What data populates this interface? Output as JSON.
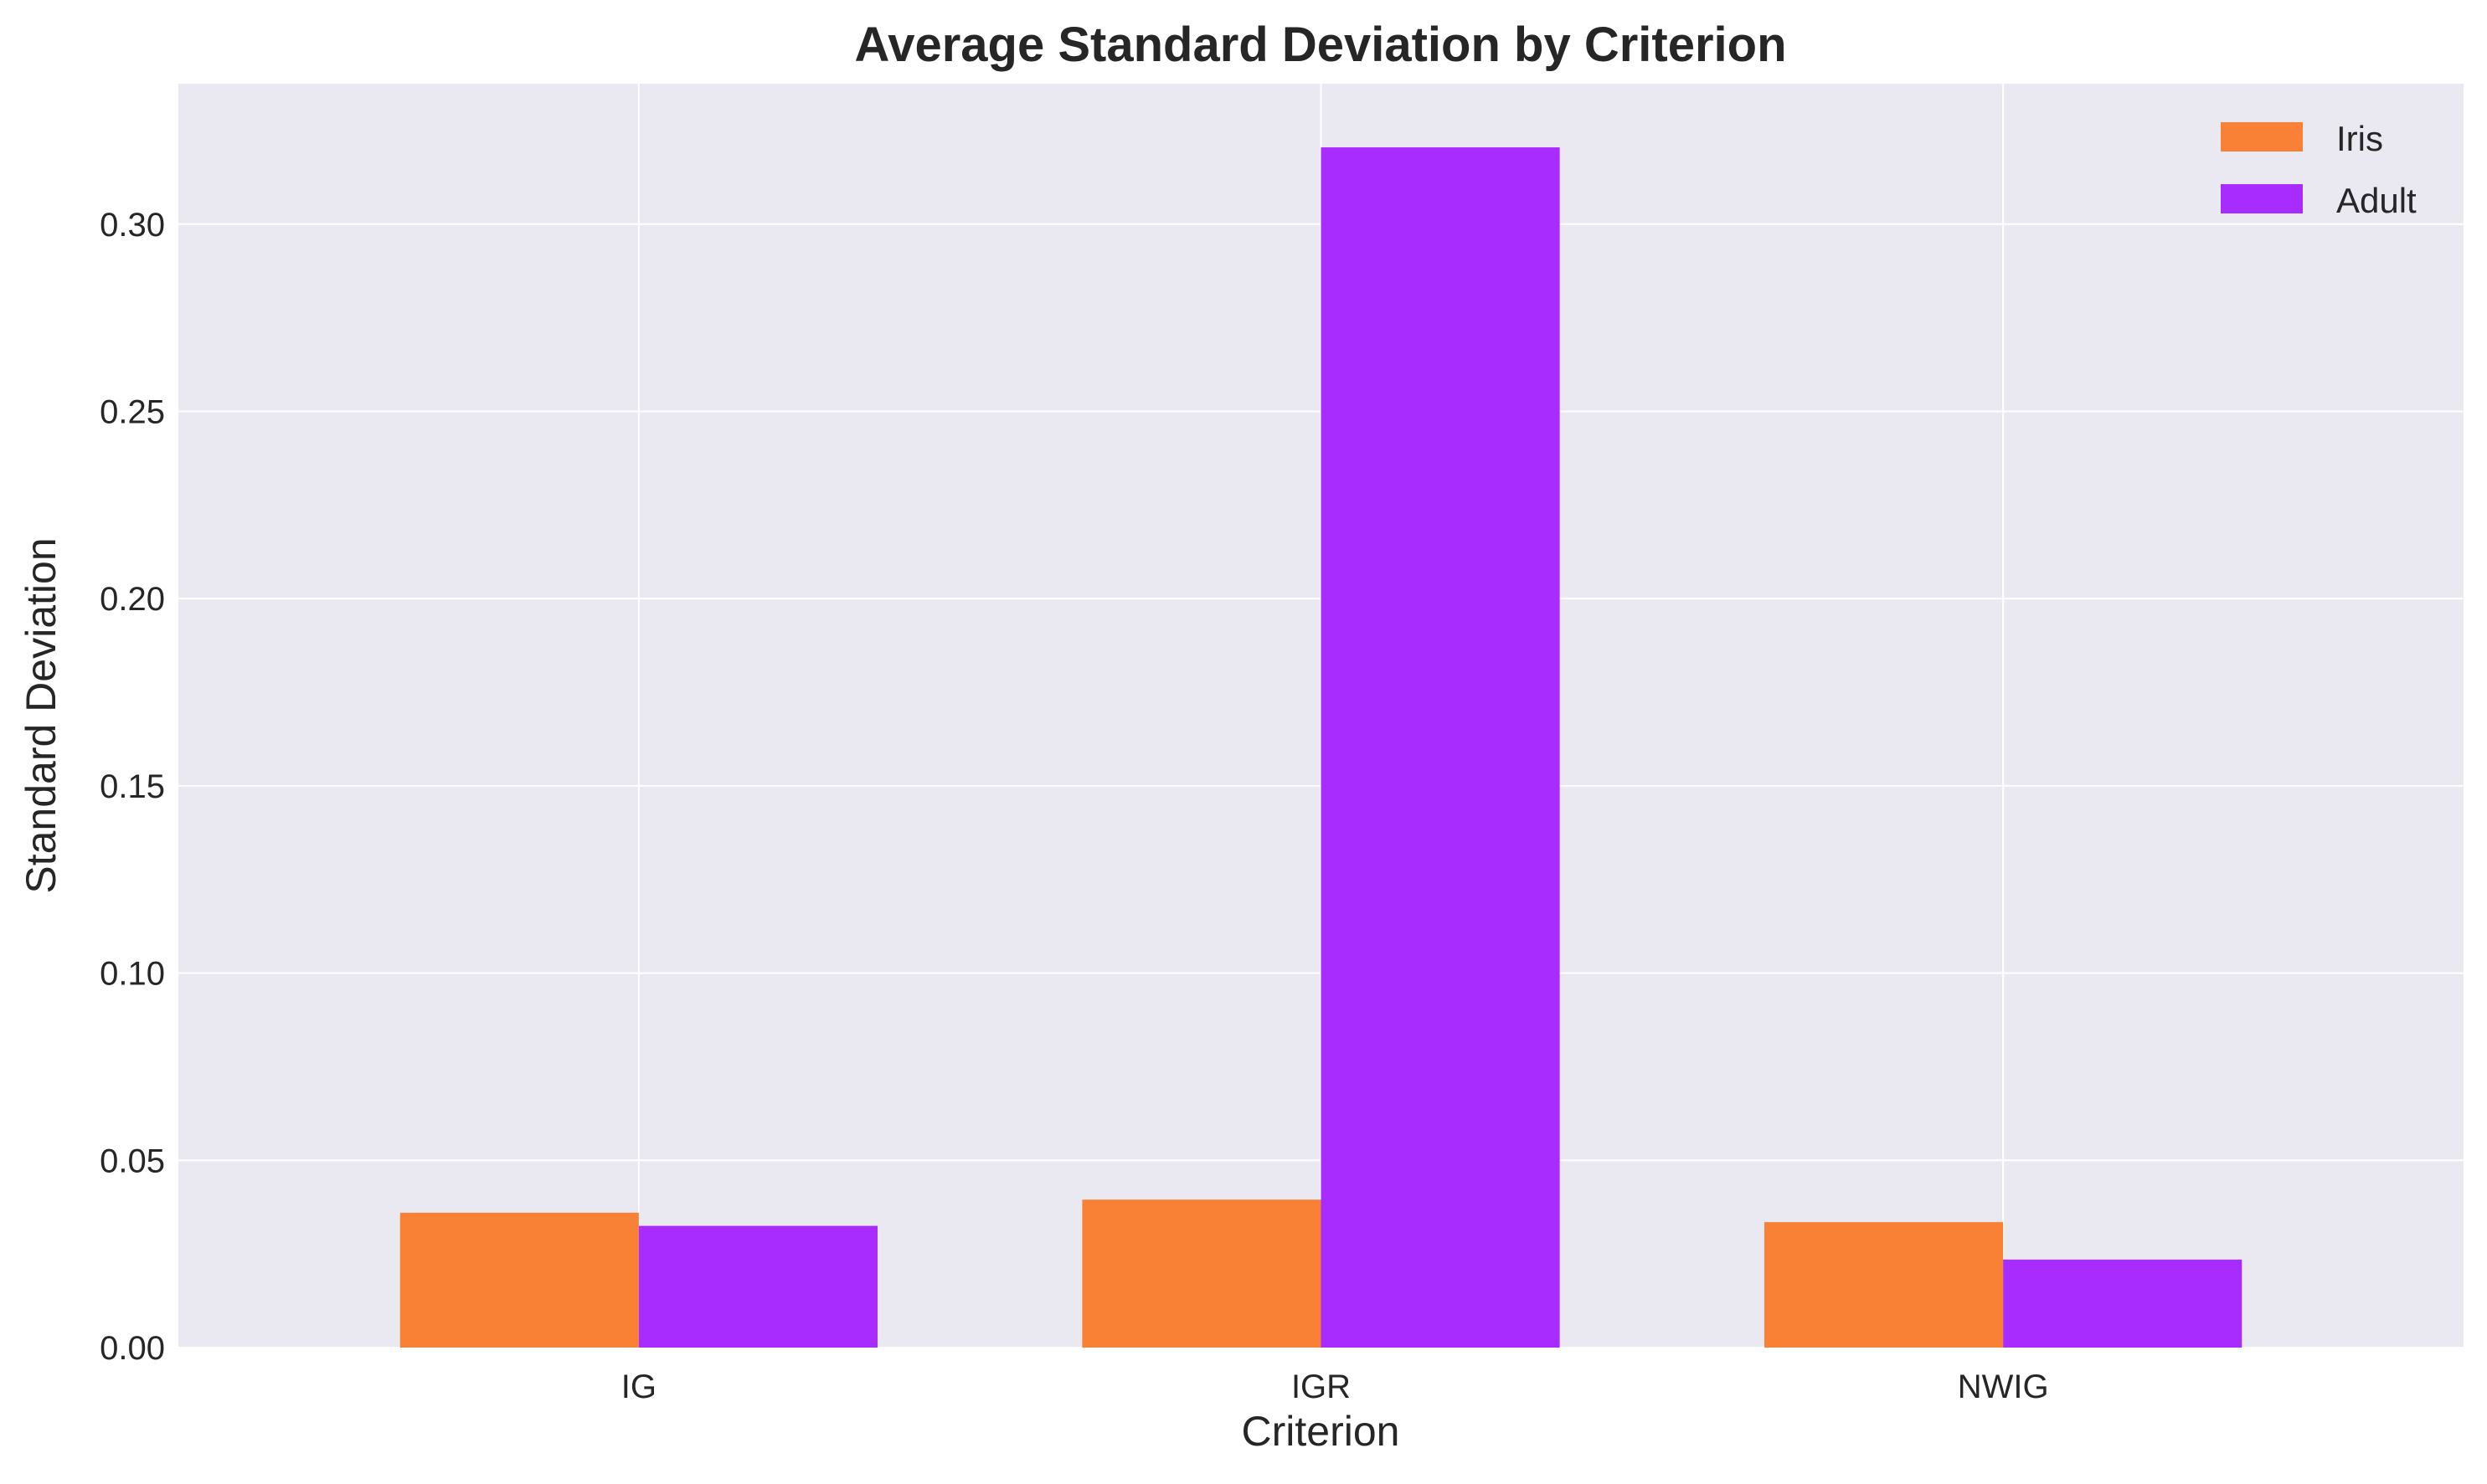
{
  "chart_data": {
    "type": "bar",
    "title": "Average Standard Deviation by Criterion",
    "xlabel": "Criterion",
    "ylabel": "Standard Deviation",
    "categories": [
      "IG",
      "IGR",
      "NWIG"
    ],
    "series": [
      {
        "name": "Iris",
        "color": "#f98135",
        "values": [
          0.036,
          0.0395,
          0.0335
        ]
      },
      {
        "name": "Adult",
        "color": "#a72cfd",
        "values": [
          0.0325,
          0.3205,
          0.0235
        ]
      }
    ],
    "ylim": [
      0,
      0.3375
    ],
    "yticks": [
      "0.00",
      "0.05",
      "0.10",
      "0.15",
      "0.20",
      "0.25",
      "0.30"
    ],
    "ytick_values": [
      0,
      0.05,
      0.1,
      0.15,
      0.2,
      0.25,
      0.3
    ],
    "grid": true,
    "legend_position": "top-right",
    "background_color": "#eae9f2",
    "grid_color": "#ffffff"
  }
}
